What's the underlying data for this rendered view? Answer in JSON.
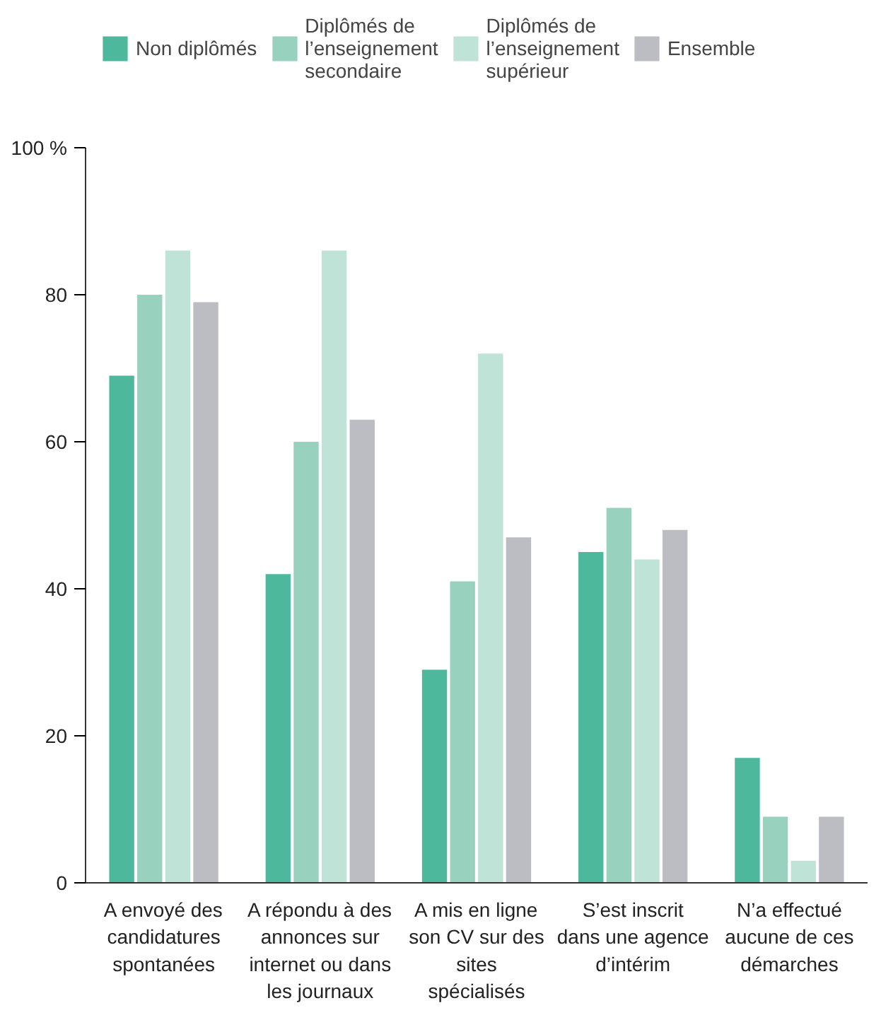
{
  "chart_data": {
    "type": "bar",
    "categories": [
      "A envoyé des candidatures spontanées",
      "A répondu à des annonces sur internet ou dans les journaux",
      "A mis en ligne son CV sur des sites spécialisés",
      "S’est inscrit dans une agence d’intérim",
      "N’a effectué aucune de ces démarches"
    ],
    "series": [
      {
        "name": "Non diplômés",
        "color": "#4db89b",
        "values": [
          69,
          42,
          29,
          45,
          17
        ]
      },
      {
        "name": "Diplômés de l’enseignement secondaire",
        "color": "#98d2be",
        "values": [
          80,
          60,
          41,
          51,
          9
        ]
      },
      {
        "name": "Diplômés de l’enseignement supérieur",
        "color": "#bfe4d7",
        "values": [
          86,
          86,
          72,
          44,
          3
        ]
      },
      {
        "name": "Ensemble",
        "color": "#bcbcc3",
        "values": [
          79,
          63,
          47,
          48,
          9
        ]
      }
    ],
    "ylim": [
      0,
      100
    ],
    "yticks": [
      0,
      20,
      40,
      60,
      80,
      {
        "value": 100,
        "label": "100 %"
      }
    ],
    "grid": false,
    "legend": "top"
  }
}
